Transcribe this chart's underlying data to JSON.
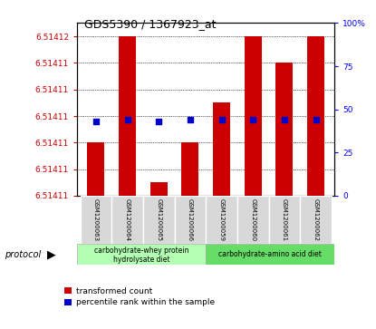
{
  "title": "GDS5390 / 1367923_at",
  "samples": [
    "GSM1200063",
    "GSM1200064",
    "GSM1200065",
    "GSM1200066",
    "GSM1200059",
    "GSM1200060",
    "GSM1200061",
    "GSM1200062"
  ],
  "transformed_count": [
    6.514112,
    6.51412,
    6.514109,
    6.514112,
    6.514115,
    6.51412,
    6.514118,
    6.51412
  ],
  "percentile_rank": [
    43,
    44,
    43,
    44,
    44,
    44,
    44,
    44
  ],
  "ylim_min": 6.514108,
  "ylim_max": 6.514121,
  "bar_color": "#cc0000",
  "dot_color": "#0000cc",
  "group1_label_line1": "carbohydrate-whey protein",
  "group1_label_line2": "hydrolysate diet",
  "group2_label": "carbohydrate-amino acid diet",
  "group1_color": "#b3ffb3",
  "group2_color": "#66dd66",
  "legend_red_label": "transformed count",
  "legend_blue_label": "percentile rank within the sample",
  "left_ytick_vals": [
    6.514108,
    6.51411,
    6.514112,
    6.514114,
    6.514116,
    6.514118,
    6.51412
  ],
  "left_ytick_labels": [
    "6.51411",
    "6.51411",
    "6.51411",
    "6.51411",
    "6.51411",
    "6.51411",
    "6.51412"
  ],
  "right_ytick_vals": [
    0,
    25,
    50,
    75,
    100
  ],
  "right_ytick_labels": [
    "0",
    "25",
    "50",
    "75",
    "100%"
  ]
}
